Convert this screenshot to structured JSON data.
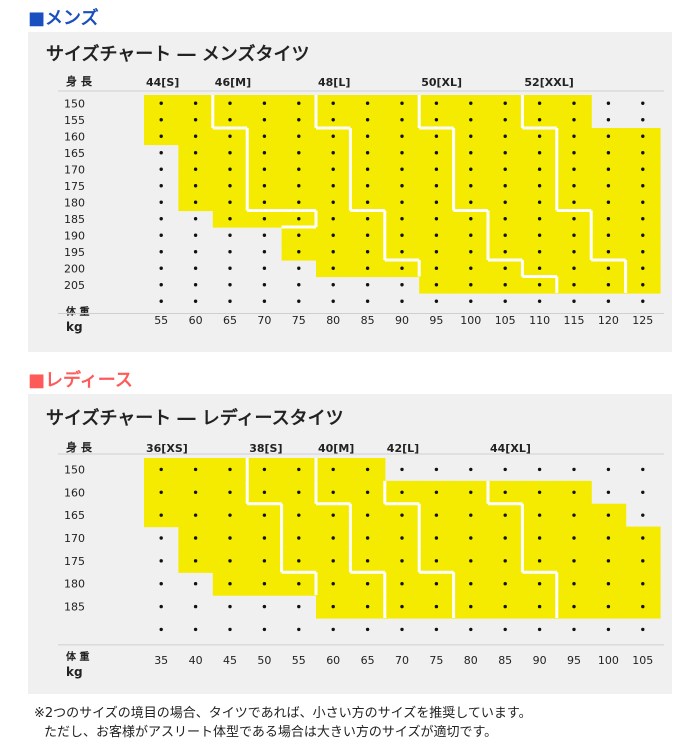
{
  "men": {
    "heading": "■メンズ",
    "heading_color": "#1a4fbf",
    "chart_title": "サイズチャート ― メンズタイツ",
    "height_label": "身 長",
    "weight_label_1": "体 重",
    "weight_label_2": "kg"
  },
  "women": {
    "heading": "■レディース",
    "heading_color": "#ff5a5a",
    "chart_title": "サイズチャート ― レディースタイツ",
    "height_label": "身 長",
    "weight_label_1": "体 重",
    "weight_label_2": "kg"
  },
  "notes": {
    "line1": "※2つのサイズの境目の場合、タイツであれば、小さい方のサイズを推奨しています。",
    "line2": "ただし、お客様がアスリート体型である場合は大きい方のサイズが適切です。"
  },
  "colors": {
    "fill": "#f5eb00",
    "dot": "#111111",
    "panel": "#f0f0f0"
  },
  "chart_data": [
    {
      "type": "heatmap",
      "title": "サイズチャート ― メンズタイツ",
      "ylabel": "身 長",
      "xlabel": "体 重 kg",
      "y": [
        "150",
        "155",
        "160",
        "165",
        "170",
        "175",
        "180",
        "185",
        "190",
        "195",
        "200",
        "205"
      ],
      "x": [
        "55",
        "60",
        "65",
        "70",
        "75",
        "80",
        "85",
        "90",
        "95",
        "100",
        "105",
        "110",
        "115",
        "120",
        "125"
      ],
      "legend": [
        "44[S]",
        "46[M]",
        "48[L]",
        "50[XL]",
        "52[XXL]"
      ],
      "cells": [
        [
          1,
          1,
          2,
          2,
          2,
          3,
          3,
          3,
          4,
          4,
          4,
          5,
          5,
          0,
          0
        ],
        [
          1,
          1,
          2,
          2,
          2,
          3,
          3,
          3,
          4,
          4,
          4,
          5,
          5,
          0,
          0
        ],
        [
          1,
          1,
          1,
          2,
          2,
          2,
          3,
          3,
          3,
          4,
          4,
          4,
          5,
          5,
          5
        ],
        [
          0,
          1,
          1,
          2,
          2,
          2,
          3,
          3,
          3,
          4,
          4,
          4,
          5,
          5,
          5
        ],
        [
          0,
          1,
          1,
          2,
          2,
          2,
          3,
          3,
          3,
          4,
          4,
          4,
          5,
          5,
          5
        ],
        [
          0,
          1,
          1,
          2,
          2,
          2,
          3,
          3,
          3,
          4,
          4,
          4,
          5,
          5,
          5
        ],
        [
          0,
          1,
          1,
          2,
          2,
          2,
          3,
          3,
          3,
          4,
          4,
          4,
          5,
          5,
          5
        ],
        [
          0,
          0,
          1,
          1,
          1,
          2,
          2,
          3,
          3,
          3,
          4,
          4,
          4,
          5,
          5
        ],
        [
          0,
          0,
          0,
          0,
          2,
          2,
          2,
          3,
          3,
          3,
          4,
          4,
          4,
          5,
          5
        ],
        [
          0,
          0,
          0,
          0,
          2,
          2,
          2,
          3,
          3,
          3,
          4,
          4,
          4,
          5,
          5
        ],
        [
          0,
          0,
          0,
          0,
          0,
          2,
          2,
          2,
          3,
          3,
          3,
          4,
          4,
          4,
          5
        ],
        [
          0,
          0,
          0,
          0,
          0,
          0,
          0,
          0,
          3,
          3,
          3,
          3,
          4,
          4,
          5
        ]
      ]
    },
    {
      "type": "heatmap",
      "title": "サイズチャート ― レディースタイツ",
      "ylabel": "身 長",
      "xlabel": "体 重 kg",
      "y": [
        "150",
        "160",
        "165",
        "170",
        "175",
        "180",
        "185"
      ],
      "x": [
        "35",
        "40",
        "45",
        "50",
        "55",
        "60",
        "65",
        "70",
        "75",
        "80",
        "85",
        "90",
        "95",
        "100",
        "105"
      ],
      "legend": [
        "36[XS]",
        "38[S]",
        "40[M]",
        "42[L]",
        "44[XL]"
      ],
      "cells": [
        [
          1,
          1,
          1,
          2,
          2,
          3,
          3,
          0,
          0,
          0,
          0,
          0,
          0,
          0,
          0
        ],
        [
          1,
          1,
          1,
          2,
          2,
          3,
          3,
          4,
          4,
          4,
          5,
          5,
          5,
          0,
          0
        ],
        [
          1,
          1,
          1,
          1,
          2,
          2,
          3,
          3,
          4,
          4,
          4,
          5,
          5,
          5,
          0
        ],
        [
          0,
          1,
          1,
          1,
          2,
          2,
          3,
          3,
          4,
          4,
          4,
          5,
          5,
          5,
          5
        ],
        [
          0,
          1,
          1,
          1,
          2,
          2,
          3,
          3,
          4,
          4,
          4,
          5,
          5,
          5,
          5
        ],
        [
          0,
          0,
          1,
          1,
          1,
          2,
          2,
          3,
          3,
          4,
          4,
          4,
          5,
          5,
          5
        ],
        [
          0,
          0,
          0,
          0,
          0,
          2,
          2,
          3,
          3,
          4,
          4,
          4,
          5,
          5,
          5
        ]
      ]
    }
  ]
}
